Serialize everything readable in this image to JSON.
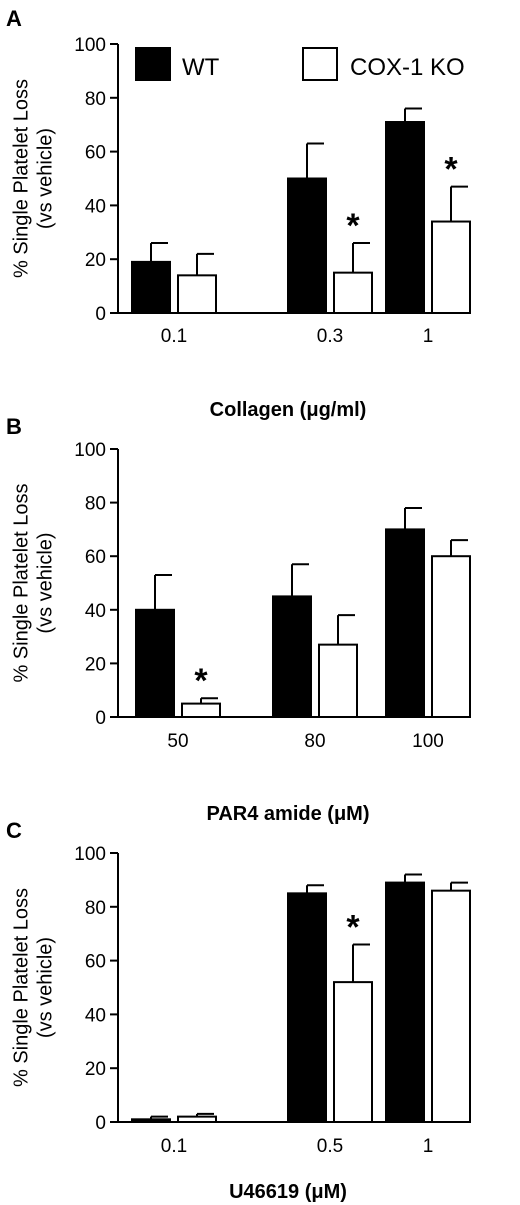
{
  "chart_data": [
    {
      "type": "bar",
      "panel": "A",
      "ylabel_line1": "% Single Platelet Loss",
      "ylabel_line2": "(vs vehicle)",
      "xlabel": "Collagen (μg/ml)",
      "ylim": [
        0,
        100
      ],
      "yticks": [
        "0",
        "20",
        "40",
        "60",
        "80",
        "100"
      ],
      "categories": [
        "0.1",
        "0.3",
        "1"
      ],
      "series": [
        {
          "name": "WT",
          "values": [
            19,
            50,
            71
          ],
          "errors": [
            7,
            13,
            5
          ],
          "fill": "#000000"
        },
        {
          "name": "COX-1 KO",
          "values": [
            14,
            15,
            34
          ],
          "errors": [
            8,
            11,
            13
          ],
          "fill": "#ffffff"
        }
      ],
      "significance": [
        {
          "category": 1,
          "series": 1,
          "mark": "*"
        },
        {
          "category": 2,
          "series": 1,
          "mark": "*"
        }
      ],
      "legend": "top"
    },
    {
      "type": "bar",
      "panel": "B",
      "ylabel_line1": "% Single Platelet Loss",
      "ylabel_line2": "(vs vehicle)",
      "xlabel": "PAR4 amide (μM)",
      "ylim": [
        0,
        100
      ],
      "yticks": [
        "0",
        "20",
        "40",
        "60",
        "80",
        "100"
      ],
      "categories": [
        "50",
        "80",
        "100"
      ],
      "series": [
        {
          "name": "WT",
          "values": [
            40,
            45,
            70
          ],
          "errors": [
            13,
            12,
            8
          ],
          "fill": "#000000"
        },
        {
          "name": "COX-1 KO",
          "values": [
            5,
            27,
            60
          ],
          "errors": [
            2,
            11,
            6
          ],
          "fill": "#ffffff"
        }
      ],
      "significance": [
        {
          "category": 0,
          "series": 1,
          "mark": "*"
        }
      ]
    },
    {
      "type": "bar",
      "panel": "C",
      "ylabel_line1": "% Single Platelet Loss",
      "ylabel_line2": "(vs vehicle)",
      "xlabel": "U46619 (μM)",
      "ylim": [
        0,
        100
      ],
      "yticks": [
        "0",
        "20",
        "40",
        "60",
        "80",
        "100"
      ],
      "categories": [
        "0.1",
        "0.5",
        "1"
      ],
      "series": [
        {
          "name": "WT",
          "values": [
            1,
            85,
            89
          ],
          "errors": [
            1,
            3,
            3
          ],
          "fill": "#000000"
        },
        {
          "name": "COX-1 KO",
          "values": [
            2,
            52,
            86
          ],
          "errors": [
            1,
            14,
            3
          ],
          "fill": "#ffffff"
        }
      ],
      "significance": [
        {
          "category": 1,
          "series": 1,
          "mark": "*"
        }
      ]
    }
  ]
}
